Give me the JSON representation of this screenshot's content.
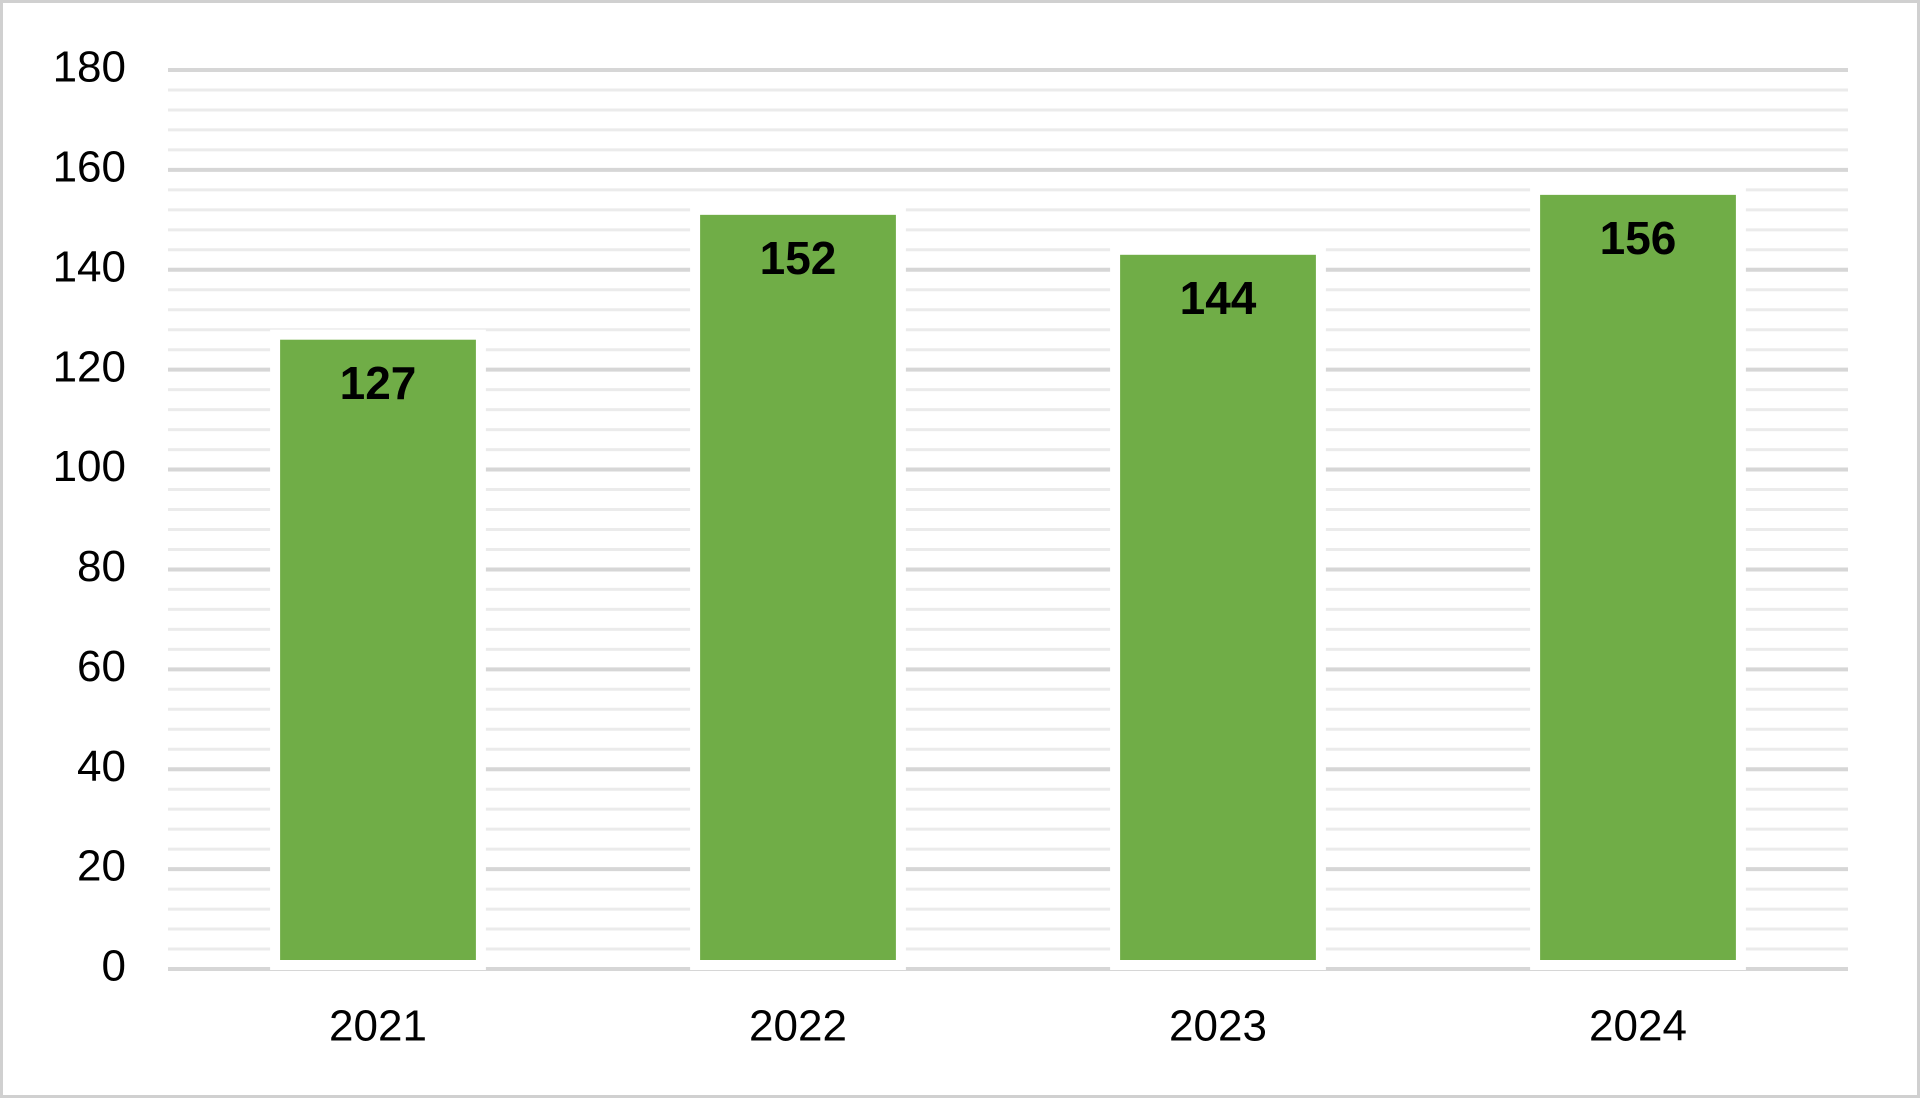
{
  "chart_data": {
    "type": "bar",
    "categories": [
      "2021",
      "2022",
      "2023",
      "2024"
    ],
    "values": [
      127,
      152,
      144,
      156
    ],
    "color": "#70ad47",
    "ylim": [
      0,
      180
    ],
    "yticks": [
      0,
      20,
      40,
      60,
      80,
      100,
      120,
      140,
      160,
      180
    ],
    "grid": true,
    "minor_grid": true
  }
}
